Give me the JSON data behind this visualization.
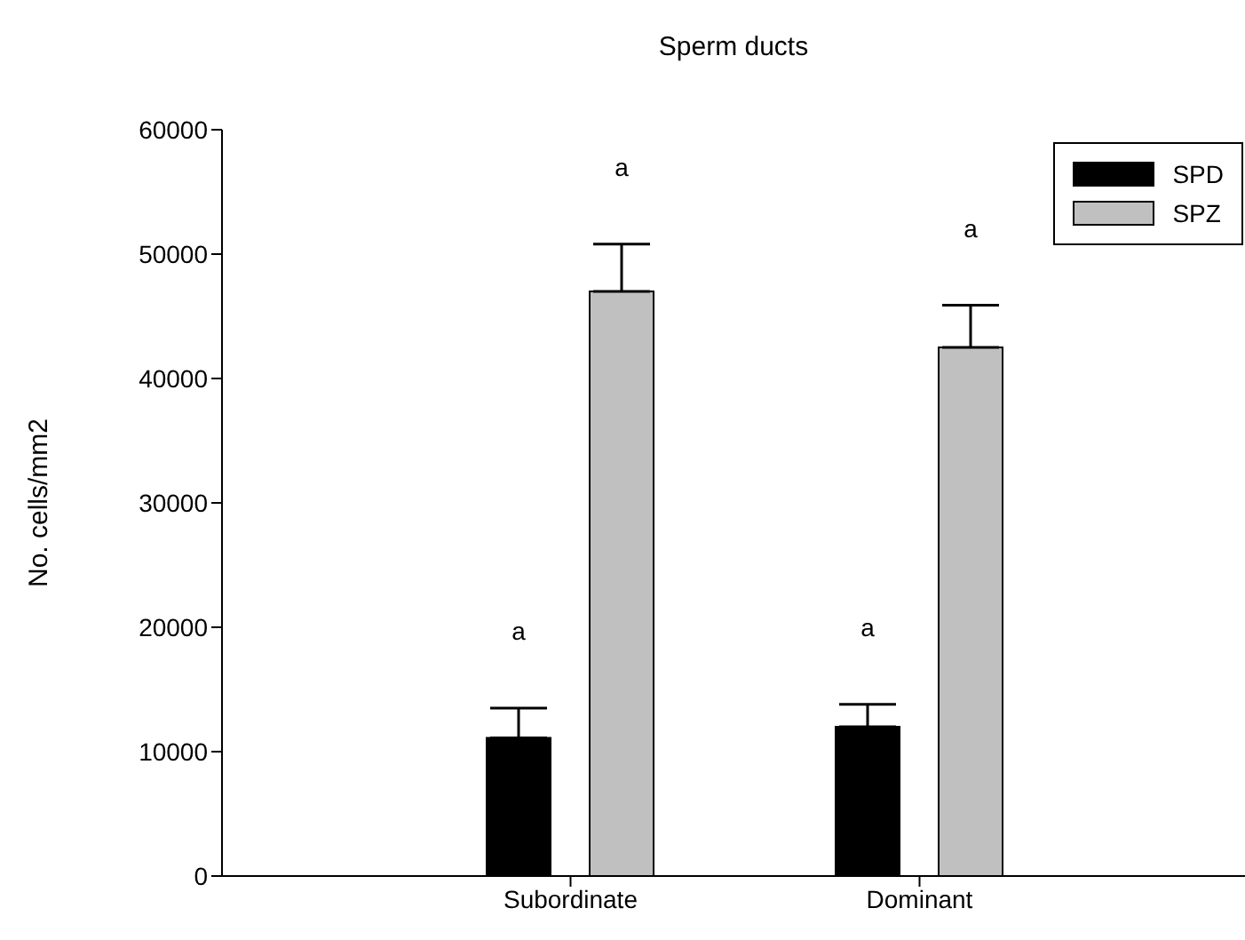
{
  "chart_data": {
    "type": "bar",
    "title": "Sperm ducts",
    "ylabel": "No. cells/mm2",
    "categories": [
      "Subordinate",
      "Dominant"
    ],
    "series": [
      {
        "name": "SPD",
        "color": "#000000",
        "values": [
          11100,
          12000
        ],
        "errors": [
          [
            11100,
            13500
          ],
          [
            12000,
            13800
          ]
        ]
      },
      {
        "name": "SPZ",
        "color": "#c0c0c0",
        "values": [
          47000,
          42500
        ],
        "errors": [
          [
            47000,
            50800
          ],
          [
            42500,
            45900
          ]
        ]
      }
    ],
    "ylim": [
      0,
      60000
    ],
    "yticks": [
      0,
      10000,
      20000,
      30000,
      40000,
      50000,
      60000
    ],
    "grid": false,
    "legend": "top right",
    "annotations": [
      "a",
      "a",
      "a",
      "a"
    ]
  }
}
